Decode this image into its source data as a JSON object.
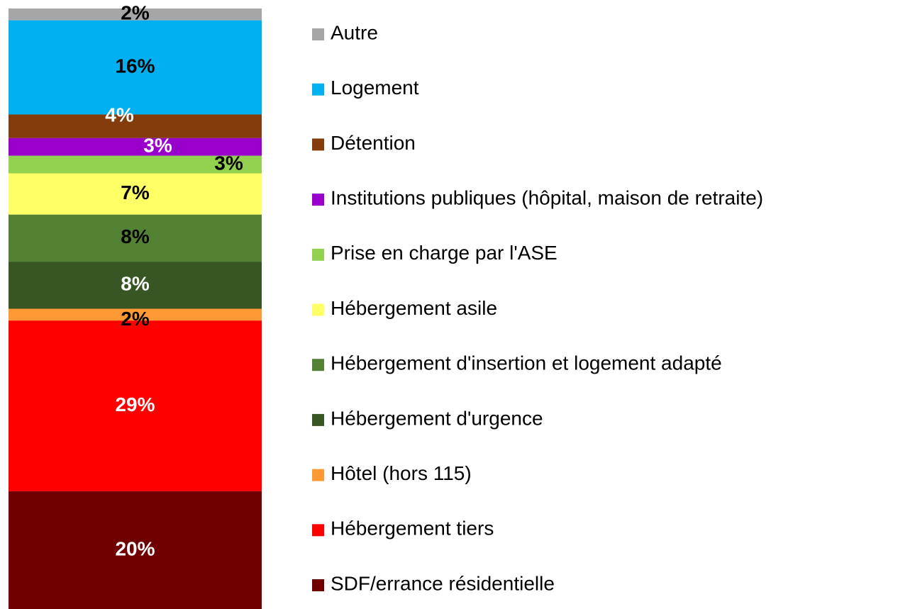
{
  "chart_data": {
    "type": "stacked_bar",
    "series": [
      {
        "name": "SDF/errance résidentielle",
        "color": "#700000",
        "label_color": "#ffffff",
        "values": [
          20
        ],
        "value_labels": [
          "20%"
        ]
      },
      {
        "name": "Hébergement tiers",
        "color": "#ff0000",
        "label_color": "#ffffff",
        "values": [
          29
        ],
        "value_labels": [
          "29%"
        ]
      },
      {
        "name": "Hôtel (hors 115)",
        "color": "#ff9933",
        "label_color": "#000000",
        "values": [
          2
        ],
        "value_labels": [
          "2%"
        ]
      },
      {
        "name": "Hébergement d'urgence",
        "color": "#375623",
        "label_color": "#ffffff",
        "values": [
          8
        ],
        "value_labels": [
          "8%"
        ]
      },
      {
        "name": "Hébergement d'insertion et logement adapté",
        "color": "#548235",
        "label_color": "#000000",
        "values": [
          8
        ],
        "value_labels": [
          "8%"
        ]
      },
      {
        "name": "Hébergement asile",
        "color": "#ffff66",
        "label_color": "#000000",
        "values": [
          7
        ],
        "value_labels": [
          "7%"
        ]
      },
      {
        "name": "Prise en charge par l'ASE",
        "color": "#92d050",
        "label_color": "#000000",
        "values": [
          3
        ],
        "value_labels": [
          "3%"
        ]
      },
      {
        "name": "Institutions publiques (hôpital, maison de retraite)",
        "color": "#9900cc",
        "label_color": "#ffffff",
        "values": [
          3
        ],
        "value_labels": [
          "3%"
        ]
      },
      {
        "name": "Détention",
        "color": "#843c0c",
        "label_color": "#ffffff",
        "values": [
          4
        ],
        "value_labels": [
          "4%"
        ]
      },
      {
        "name": "Logement",
        "color": "#00b0f0",
        "label_color": "#000000",
        "values": [
          16
        ],
        "value_labels": [
          "16%"
        ]
      },
      {
        "name": "Autre",
        "color": "#a6a6a6",
        "label_color": "#000000",
        "values": [
          2
        ],
        "value_labels": [
          "2%"
        ]
      }
    ],
    "legend": "right"
  }
}
